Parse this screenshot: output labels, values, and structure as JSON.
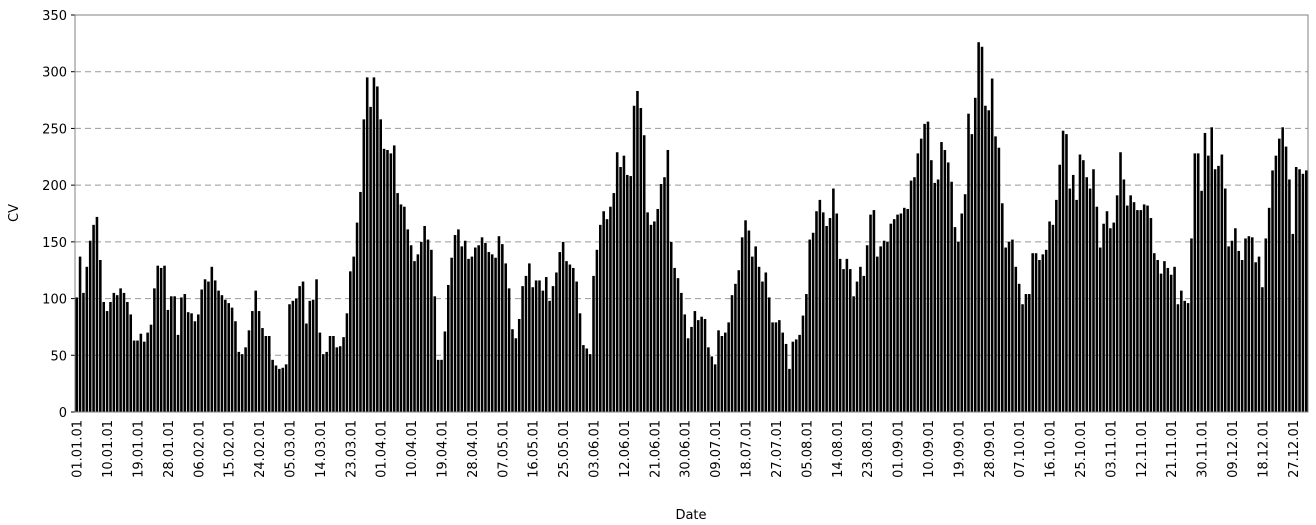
{
  "chart_data": {
    "type": "bar",
    "x_label": "Date",
    "y_label": "CV",
    "color": "#000000",
    "grid": true,
    "ylim": [
      0,
      350
    ],
    "yticks": [
      0,
      50,
      100,
      150,
      200,
      250,
      300,
      350
    ],
    "categories": [
      "01.01.01",
      null,
      null,
      null,
      null,
      null,
      null,
      null,
      null,
      "10.01.01",
      null,
      null,
      null,
      null,
      null,
      null,
      null,
      null,
      "19.01.01",
      null,
      null,
      null,
      null,
      null,
      null,
      null,
      null,
      "28.01.01",
      null,
      null,
      null,
      null,
      null,
      null,
      null,
      null,
      "06.02.01",
      null,
      null,
      null,
      null,
      null,
      null,
      null,
      null,
      "15.02.01",
      null,
      null,
      null,
      null,
      null,
      null,
      null,
      null,
      "24.02.01",
      null,
      null,
      null,
      null,
      null,
      null,
      null,
      null,
      "05.03.01",
      null,
      null,
      null,
      null,
      null,
      null,
      null,
      null,
      "14.03.01",
      null,
      null,
      null,
      null,
      null,
      null,
      null,
      null,
      "23.03.01",
      null,
      null,
      null,
      null,
      null,
      null,
      null,
      null,
      "01.04.01",
      null,
      null,
      null,
      null,
      null,
      null,
      null,
      null,
      "10.04.01",
      null,
      null,
      null,
      null,
      null,
      null,
      null,
      null,
      "19.04.01",
      null,
      null,
      null,
      null,
      null,
      null,
      null,
      null,
      "28.04.01",
      null,
      null,
      null,
      null,
      null,
      null,
      null,
      null,
      "07.05.01",
      null,
      null,
      null,
      null,
      null,
      null,
      null,
      null,
      "16.05.01",
      null,
      null,
      null,
      null,
      null,
      null,
      null,
      null,
      "25.05.01",
      null,
      null,
      null,
      null,
      null,
      null,
      null,
      null,
      "03.06.01",
      null,
      null,
      null,
      null,
      null,
      null,
      null,
      null,
      "12.06.01",
      null,
      null,
      null,
      null,
      null,
      null,
      null,
      null,
      "21.06.01",
      null,
      null,
      null,
      null,
      null,
      null,
      null,
      null,
      "30.06.01",
      null,
      null,
      null,
      null,
      null,
      null,
      null,
      null,
      "09.07.01",
      null,
      null,
      null,
      null,
      null,
      null,
      null,
      null,
      "18.07.01",
      null,
      null,
      null,
      null,
      null,
      null,
      null,
      null,
      "27.07.01",
      null,
      null,
      null,
      null,
      null,
      null,
      null,
      null,
      "05.08.01",
      null,
      null,
      null,
      null,
      null,
      null,
      null,
      null,
      "14.08.01",
      null,
      null,
      null,
      null,
      null,
      null,
      null,
      null,
      "23.08.01",
      null,
      null,
      null,
      null,
      null,
      null,
      null,
      null,
      "01.09.01",
      null,
      null,
      null,
      null,
      null,
      null,
      null,
      null,
      "10.09.01",
      null,
      null,
      null,
      null,
      null,
      null,
      null,
      null,
      "19.09.01",
      null,
      null,
      null,
      null,
      null,
      null,
      null,
      null,
      "28.09.01",
      null,
      null,
      null,
      null,
      null,
      null,
      null,
      null,
      "07.10.01",
      null,
      null,
      null,
      null,
      null,
      null,
      null,
      null,
      "16.10.01",
      null,
      null,
      null,
      null,
      null,
      null,
      null,
      null,
      "25.10.01",
      null,
      null,
      null,
      null,
      null,
      null,
      null,
      null,
      "03.11.01",
      null,
      null,
      null,
      null,
      null,
      null,
      null,
      null,
      "12.11.01",
      null,
      null,
      null,
      null,
      null,
      null,
      null,
      null,
      "21.11.01",
      null,
      null,
      null,
      null,
      null,
      null,
      null,
      null,
      "30.11.01",
      null,
      null,
      null,
      null,
      null,
      null,
      null,
      null,
      "09.12.01",
      null,
      null,
      null,
      null,
      null,
      null,
      null,
      null,
      "18.12.01",
      null,
      null,
      null,
      null,
      null,
      null,
      null,
      null,
      "27.12.01",
      null,
      null,
      null,
      null
    ],
    "values": [
      101,
      137,
      105,
      128,
      151,
      165,
      172,
      134,
      97,
      89,
      97,
      105,
      103,
      109,
      105,
      97,
      86,
      63,
      63,
      69,
      62,
      70,
      77,
      109,
      129,
      127,
      129,
      90,
      102,
      102,
      68,
      101,
      104,
      88,
      87,
      80,
      86,
      108,
      117,
      115,
      128,
      116,
      107,
      103,
      99,
      96,
      92,
      80,
      53,
      51,
      57,
      72,
      89,
      107,
      89,
      74,
      67,
      67,
      46,
      41,
      38,
      39,
      42,
      95,
      98,
      100,
      111,
      115,
      78,
      98,
      99,
      117,
      70,
      51,
      53,
      67,
      67,
      57,
      58,
      66,
      87,
      124,
      137,
      167,
      194,
      258,
      295,
      269,
      295,
      287,
      258,
      232,
      231,
      228,
      235,
      193,
      183,
      181,
      161,
      147,
      133,
      139,
      150,
      164,
      152,
      143,
      102,
      46,
      46,
      71,
      112,
      136,
      156,
      161,
      146,
      151,
      135,
      137,
      145,
      147,
      154,
      149,
      141,
      139,
      136,
      155,
      148,
      131,
      109,
      73,
      65,
      82,
      111,
      120,
      131,
      110,
      116,
      116,
      107,
      119,
      98,
      111,
      123,
      141,
      150,
      133,
      130,
      127,
      115,
      87,
      59,
      56,
      51,
      120,
      143,
      165,
      177,
      170,
      181,
      193,
      229,
      216,
      226,
      209,
      208,
      270,
      283,
      268,
      244,
      176,
      165,
      168,
      179,
      201,
      207,
      231,
      150,
      127,
      118,
      105,
      86,
      65,
      75,
      89,
      81,
      84,
      82,
      57,
      49,
      42,
      72,
      67,
      70,
      79,
      103,
      113,
      125,
      154,
      169,
      160,
      137,
      146,
      128,
      115,
      123,
      101,
      79,
      79,
      81,
      70,
      60,
      38,
      62,
      64,
      68,
      85,
      104,
      152,
      158,
      177,
      187,
      176,
      164,
      171,
      197,
      175,
      135,
      126,
      135,
      126,
      102,
      115,
      128,
      120,
      147,
      174,
      178,
      137,
      146,
      151,
      150,
      166,
      170,
      174,
      175,
      180,
      179,
      204,
      207,
      228,
      241,
      254,
      256,
      222,
      202,
      205,
      238,
      231,
      220,
      203,
      163,
      150,
      175,
      192,
      263,
      245,
      277,
      326,
      322,
      270,
      266,
      294,
      243,
      233,
      184,
      145,
      150,
      152,
      128,
      113,
      95,
      104,
      104,
      140,
      140,
      134,
      139,
      143,
      168,
      165,
      187,
      218,
      248,
      245,
      197,
      209,
      187,
      227,
      222,
      207,
      197,
      214,
      181,
      145,
      166,
      177,
      162,
      167,
      191,
      229,
      205,
      182,
      191,
      185,
      178,
      178,
      183,
      182,
      171,
      140,
      134,
      122,
      133,
      127,
      121,
      128,
      95,
      107,
      98,
      96,
      153,
      228,
      228,
      195,
      246,
      226,
      251,
      214,
      217,
      227,
      197,
      146,
      151,
      162,
      142,
      134,
      153,
      155,
      154,
      132,
      137,
      110,
      153,
      180,
      213,
      226,
      241,
      251,
      234,
      205,
      157,
      216,
      214,
      210,
      213
    ]
  }
}
